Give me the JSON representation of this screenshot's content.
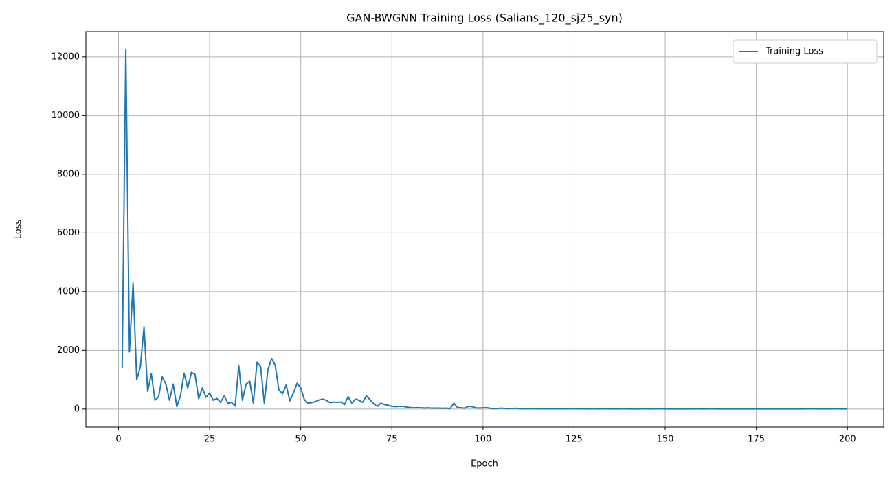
{
  "chart_data": {
    "type": "line",
    "title": "GAN-BWGNN Training Loss (Salians_120_sj25_syn)",
    "xlabel": "Epoch",
    "ylabel": "Loss",
    "x": [
      1,
      2,
      3,
      4,
      5,
      6,
      7,
      8,
      9,
      10,
      11,
      12,
      13,
      14,
      15,
      16,
      17,
      18,
      19,
      20,
      21,
      22,
      23,
      24,
      25,
      26,
      27,
      28,
      29,
      30,
      31,
      32,
      33,
      34,
      35,
      36,
      37,
      38,
      39,
      40,
      41,
      42,
      43,
      44,
      45,
      46,
      47,
      48,
      49,
      50,
      51,
      52,
      53,
      54,
      55,
      56,
      57,
      58,
      59,
      60,
      61,
      62,
      63,
      64,
      65,
      66,
      67,
      68,
      69,
      70,
      71,
      72,
      73,
      74,
      75,
      76,
      77,
      78,
      79,
      80,
      81,
      82,
      83,
      84,
      85,
      86,
      87,
      88,
      89,
      90,
      91,
      92,
      93,
      94,
      95,
      96,
      97,
      98,
      99,
      100,
      101,
      102,
      103,
      104,
      105,
      106,
      107,
      108,
      109,
      110,
      111,
      112,
      113,
      114,
      115,
      116,
      117,
      118,
      119,
      120,
      121,
      122,
      123,
      124,
      125,
      126,
      127,
      128,
      129,
      130,
      131,
      132,
      133,
      134,
      135,
      136,
      137,
      138,
      139,
      140,
      141,
      142,
      143,
      144,
      145,
      146,
      147,
      148,
      149,
      150,
      151,
      152,
      153,
      154,
      155,
      156,
      157,
      158,
      159,
      160,
      161,
      162,
      163,
      164,
      165,
      166,
      167,
      168,
      169,
      170,
      171,
      172,
      173,
      174,
      175,
      176,
      177,
      178,
      179,
      180,
      181,
      182,
      183,
      184,
      185,
      186,
      187,
      188,
      189,
      190,
      191,
      192,
      193,
      194,
      195,
      196,
      197,
      198,
      199,
      200
    ],
    "series": [
      {
        "name": "Training Loss",
        "color": "#1f77b4",
        "values": [
          1400,
          12250,
          1950,
          4300,
          1000,
          1450,
          2800,
          600,
          1200,
          300,
          420,
          1100,
          850,
          300,
          850,
          80,
          450,
          1220,
          720,
          1250,
          1180,
          350,
          720,
          400,
          550,
          300,
          360,
          230,
          450,
          200,
          230,
          100,
          1480,
          300,
          850,
          950,
          200,
          1600,
          1450,
          200,
          1350,
          1720,
          1500,
          650,
          520,
          820,
          280,
          550,
          880,
          720,
          320,
          200,
          220,
          250,
          310,
          340,
          300,
          220,
          240,
          230,
          240,
          150,
          420,
          200,
          340,
          300,
          230,
          450,
          320,
          180,
          90,
          200,
          150,
          130,
          90,
          80,
          90,
          90,
          70,
          50,
          40,
          45,
          40,
          35,
          40,
          30,
          30,
          30,
          25,
          30,
          20,
          200,
          50,
          40,
          30,
          90,
          80,
          40,
          35,
          40,
          45,
          25,
          15,
          20,
          30,
          20,
          15,
          20,
          25,
          15,
          12,
          10,
          12,
          10,
          8,
          10,
          9,
          8,
          10,
          8,
          9,
          7,
          8,
          10,
          8,
          7,
          9,
          8,
          6,
          7,
          8,
          6,
          7,
          8,
          6,
          7,
          6,
          8,
          7,
          6,
          7,
          5,
          6,
          8,
          7,
          6,
          9,
          10,
          7,
          6,
          5,
          7,
          6,
          5,
          7,
          6,
          5,
          6,
          7,
          5,
          6,
          7,
          8,
          6,
          5,
          6,
          5,
          7,
          6,
          5,
          6,
          5,
          7,
          6,
          8,
          6,
          5,
          6,
          5,
          6,
          5,
          6,
          5,
          7,
          6,
          5,
          6,
          5,
          8,
          12,
          7,
          6,
          8,
          5,
          6,
          9,
          7,
          6,
          5,
          6
        ]
      }
    ],
    "xlim": [
      -8.95,
      209.95
    ],
    "ylim": [
      -612,
      12862
    ],
    "xticks": [
      0,
      25,
      50,
      75,
      100,
      125,
      150,
      175,
      200
    ],
    "yticks": [
      0,
      2000,
      4000,
      6000,
      8000,
      10000,
      12000
    ],
    "grid": true,
    "legend": "upper right"
  }
}
